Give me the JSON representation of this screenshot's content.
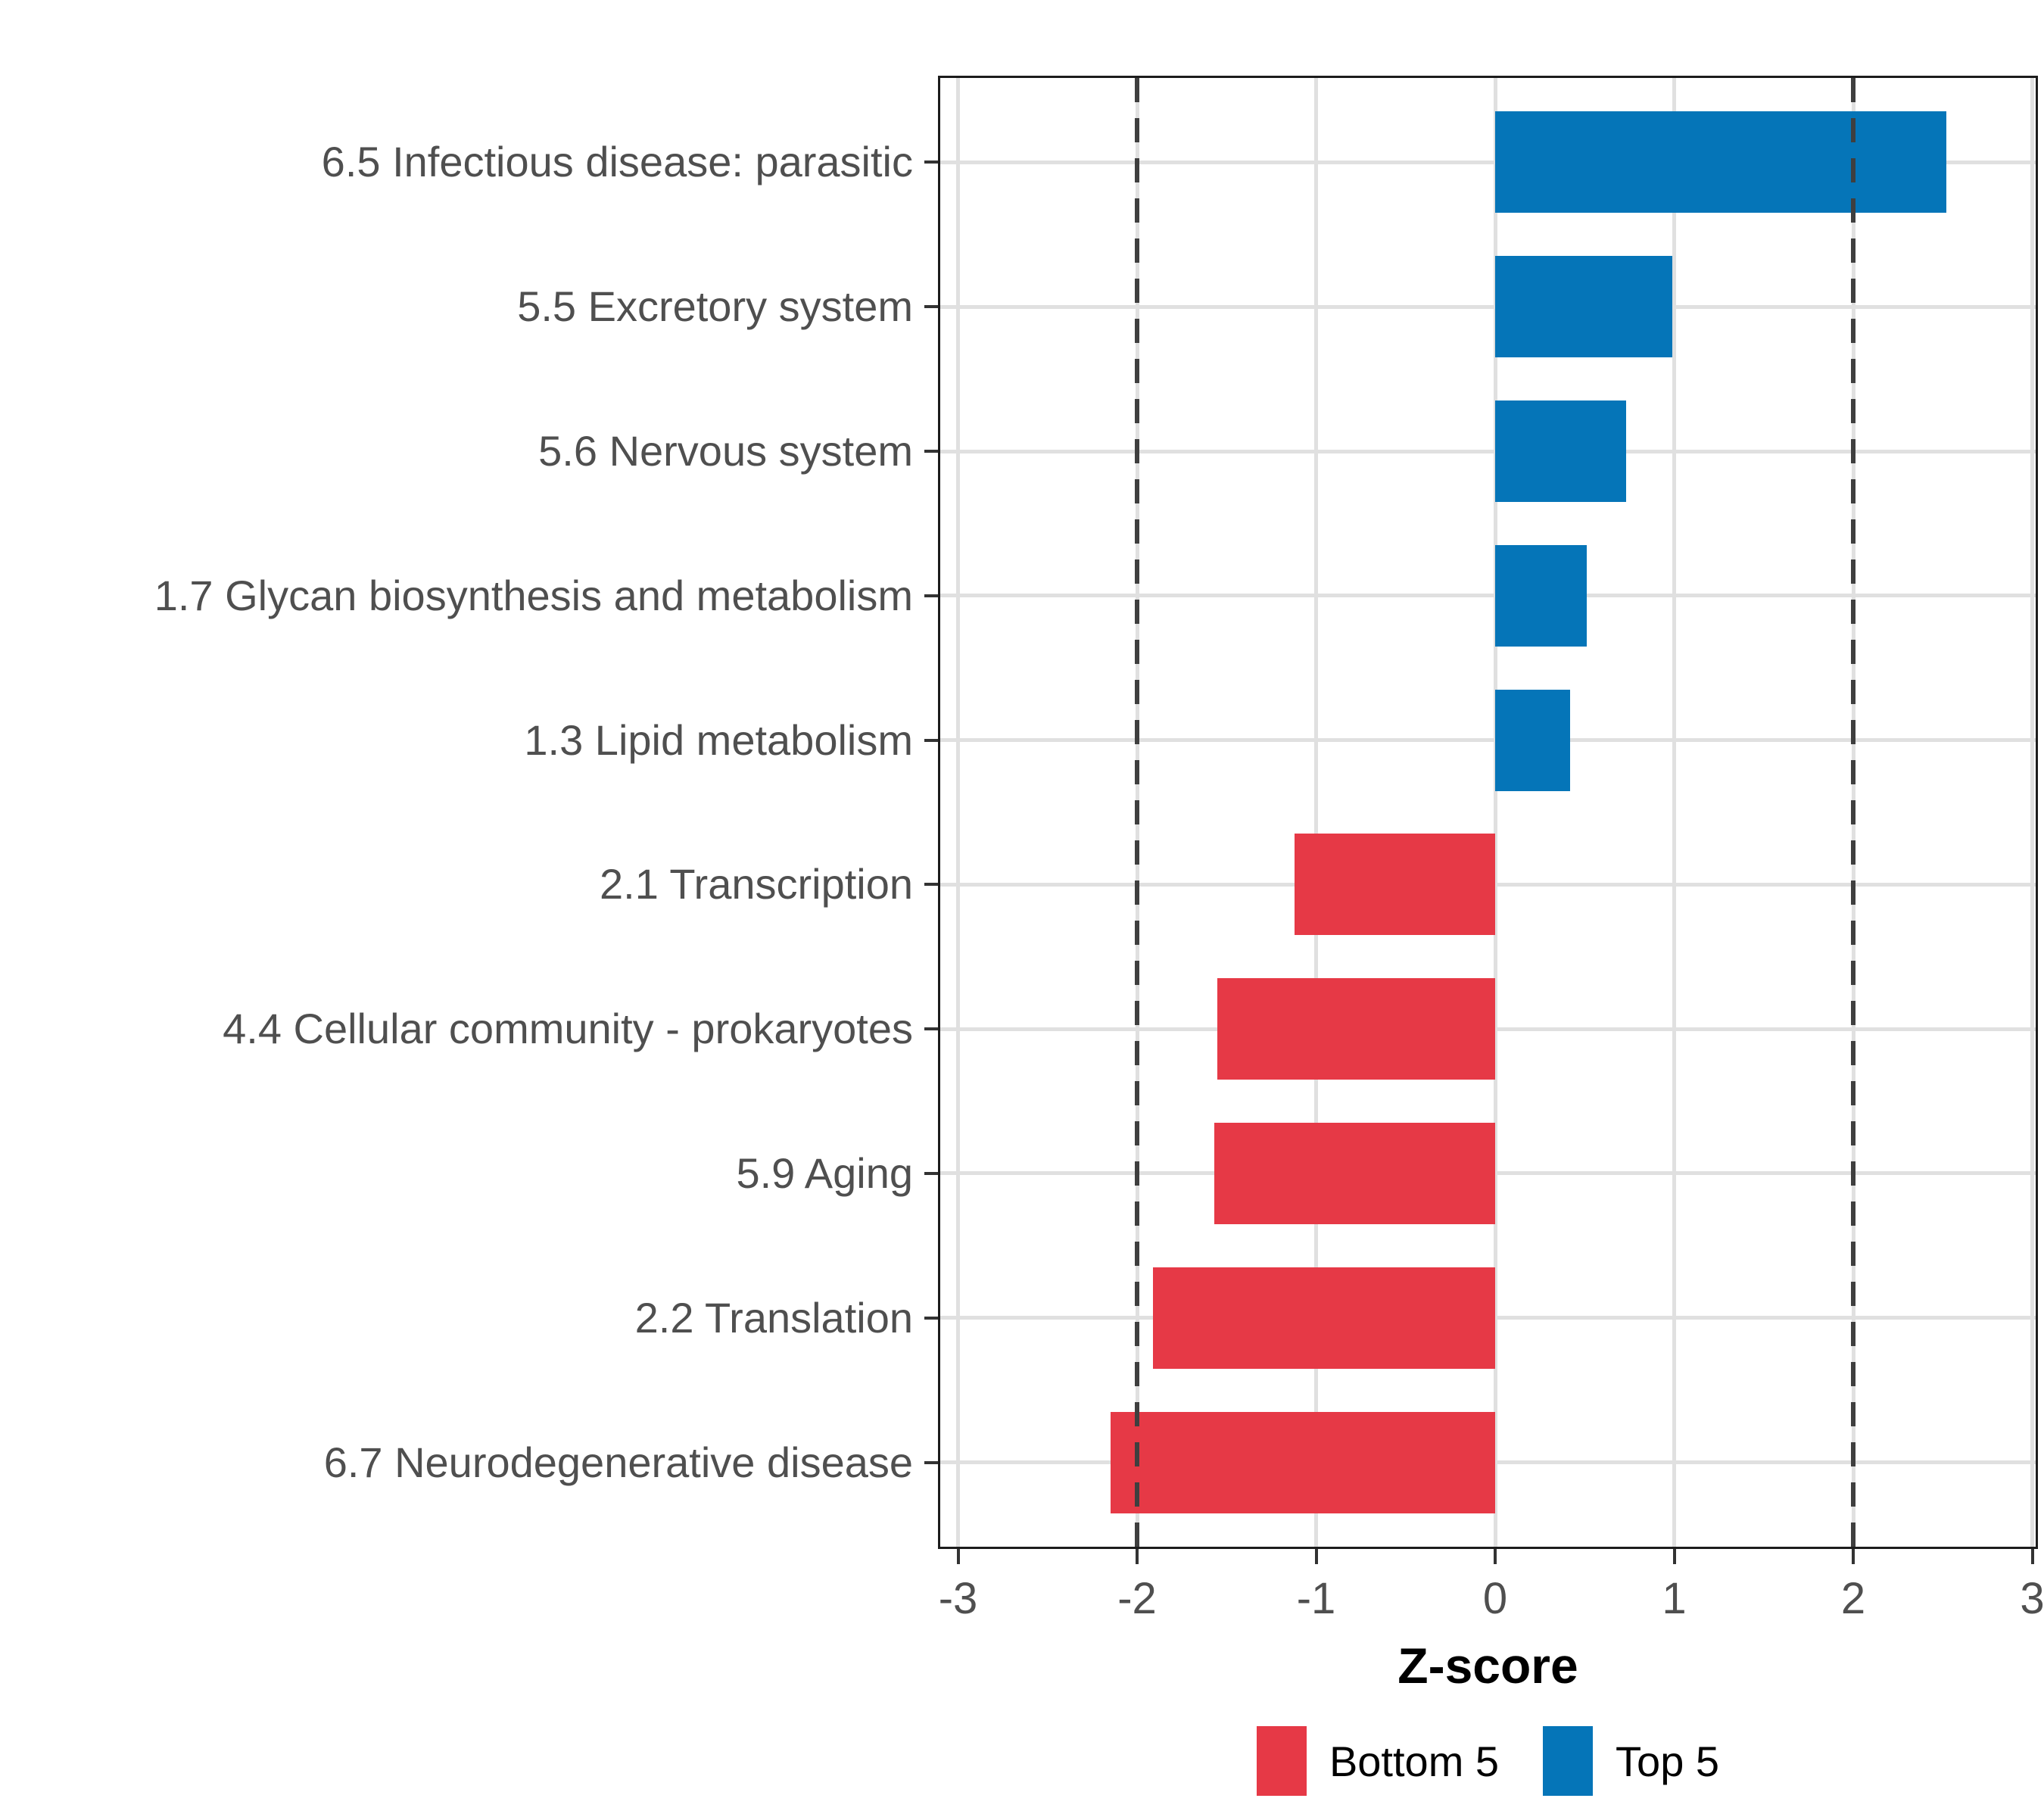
{
  "chart_data": {
    "type": "bar",
    "orientation": "horizontal",
    "title": "",
    "xlabel": "Z-score",
    "ylabel": "",
    "xlim": [
      -3,
      3
    ],
    "x_ticks": [
      -3,
      -2,
      -1,
      0,
      1,
      2,
      3
    ],
    "x_tick_labels": [
      "-3",
      "-2",
      "-1",
      "0",
      "1",
      "2",
      "3"
    ],
    "grid": "major gridlines on, light gray, vertical at each integer and horizontal at each category",
    "reference_lines": {
      "values": [
        -2,
        2
      ],
      "style": "dashed",
      "color": "#3f3f3f"
    },
    "categories": [
      "6.5 Infectious disease: parasitic",
      "5.5 Excretory system",
      "5.6 Nervous system",
      "1.7 Glycan biosynthesis and metabolism",
      "1.3 Lipid metabolism",
      "2.1 Transcription",
      "4.4 Cellular community - prokaryotes",
      "5.9 Aging",
      "2.2 Translation",
      "6.7 Neurodegenerative disease"
    ],
    "values": [
      2.52,
      0.99,
      0.73,
      0.51,
      0.42,
      -1.12,
      -1.55,
      -1.57,
      -1.91,
      -2.15
    ],
    "groups": [
      "Top 5",
      "Top 5",
      "Top 5",
      "Top 5",
      "Top 5",
      "Bottom 5",
      "Bottom 5",
      "Bottom 5",
      "Bottom 5",
      "Bottom 5"
    ],
    "colors": {
      "Top 5": "#0575B8",
      "Bottom 5": "#E63946"
    },
    "legend": {
      "position": "bottom",
      "entries": [
        {
          "label": "Bottom 5",
          "color": "#E63946"
        },
        {
          "label": "Top 5",
          "color": "#0575B8"
        }
      ]
    }
  }
}
